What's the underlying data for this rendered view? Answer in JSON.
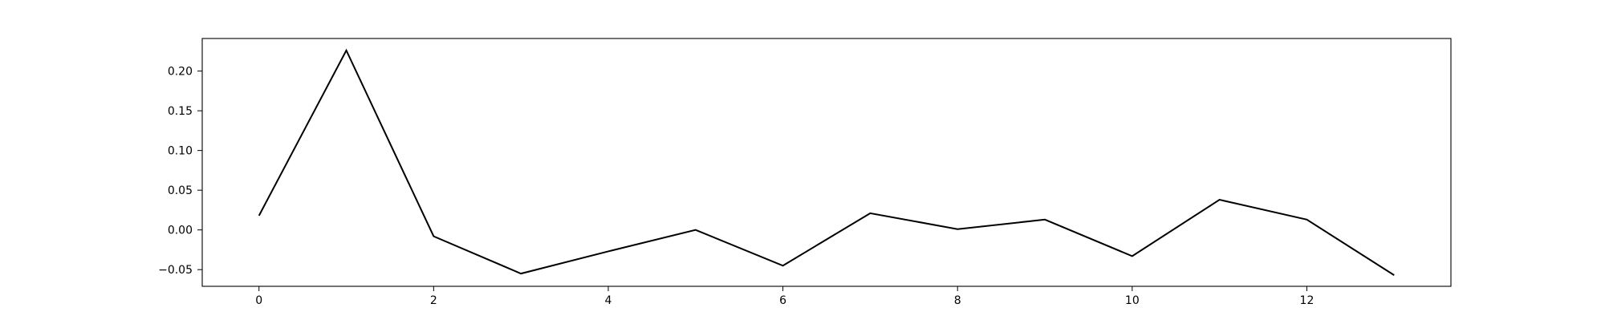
{
  "chart_data": {
    "type": "line",
    "title": "",
    "xlabel": "",
    "ylabel": "",
    "x": [
      0,
      1,
      2,
      3,
      4,
      5,
      6,
      7,
      8,
      9,
      10,
      11,
      12,
      13
    ],
    "series": [
      {
        "values": [
          0.018,
          0.226,
          -0.008,
          -0.055,
          -0.027,
          0.0,
          -0.045,
          0.021,
          0.001,
          0.013,
          -0.033,
          0.038,
          0.013,
          -0.057
        ],
        "color": "#000000"
      }
    ],
    "xlim": [
      -0.65,
      13.65
    ],
    "ylim": [
      -0.071,
      0.241
    ],
    "xticks": [
      0,
      2,
      4,
      6,
      8,
      10,
      12
    ],
    "xtick_labels": [
      "0",
      "2",
      "4",
      "6",
      "8",
      "10",
      "12"
    ],
    "yticks": [
      -0.05,
      0.0,
      0.05,
      0.1,
      0.15,
      0.2
    ],
    "ytick_labels": [
      "−0.05",
      "0.00",
      "0.05",
      "0.10",
      "0.15",
      "0.20"
    ],
    "grid": false,
    "legend": "none"
  }
}
